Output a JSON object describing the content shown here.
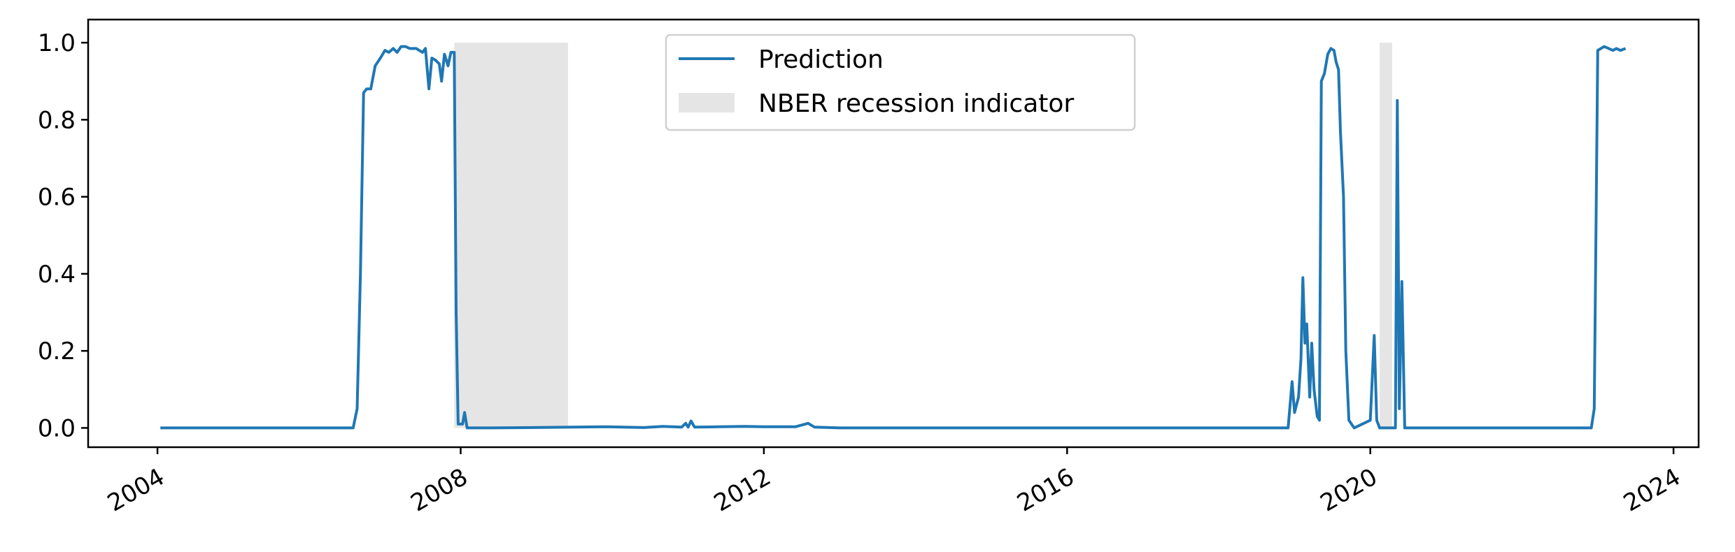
{
  "chart_data": {
    "type": "line",
    "xlim": [
      "2003-02-01",
      "2024-05-01"
    ],
    "ylim": [
      -0.05,
      1.06
    ],
    "xticks": [
      {
        "date": "2004-01-01",
        "label": "2004"
      },
      {
        "date": "2008-01-01",
        "label": "2008"
      },
      {
        "date": "2012-01-01",
        "label": "2012"
      },
      {
        "date": "2016-01-01",
        "label": "2016"
      },
      {
        "date": "2020-01-01",
        "label": "2020"
      },
      {
        "date": "2024-01-01",
        "label": "2024"
      }
    ],
    "yticks": [
      {
        "value": 0.0,
        "label": "0.0"
      },
      {
        "value": 0.2,
        "label": "0.2"
      },
      {
        "value": 0.4,
        "label": "0.4"
      },
      {
        "value": 0.6,
        "label": "0.6"
      },
      {
        "value": 0.8,
        "label": "0.8"
      },
      {
        "value": 1.0,
        "label": "1.0"
      }
    ],
    "legend_position": "top-center",
    "series": [
      {
        "name": "Prediction",
        "color": "#1f77b4",
        "points": [
          [
            "2004-01-15",
            0.0
          ],
          [
            "2006-08-01",
            0.0
          ],
          [
            "2006-08-20",
            0.05
          ],
          [
            "2006-09-05",
            0.4
          ],
          [
            "2006-09-20",
            0.87
          ],
          [
            "2006-10-05",
            0.88
          ],
          [
            "2006-10-25",
            0.88
          ],
          [
            "2006-11-15",
            0.94
          ],
          [
            "2006-12-10",
            0.96
          ],
          [
            "2007-01-01",
            0.98
          ],
          [
            "2007-01-20",
            0.975
          ],
          [
            "2007-02-10",
            0.985
          ],
          [
            "2007-03-01",
            0.975
          ],
          [
            "2007-03-20",
            0.99
          ],
          [
            "2007-04-10",
            0.99
          ],
          [
            "2007-05-01",
            0.985
          ],
          [
            "2007-06-01",
            0.985
          ],
          [
            "2007-07-01",
            0.975
          ],
          [
            "2007-07-15",
            0.985
          ],
          [
            "2007-08-01",
            0.88
          ],
          [
            "2007-08-15",
            0.96
          ],
          [
            "2007-09-01",
            0.955
          ],
          [
            "2007-09-20",
            0.945
          ],
          [
            "2007-10-01",
            0.9
          ],
          [
            "2007-10-15",
            0.97
          ],
          [
            "2007-11-01",
            0.94
          ],
          [
            "2007-11-15",
            0.975
          ],
          [
            "2007-12-01",
            0.975
          ],
          [
            "2007-12-10",
            0.3
          ],
          [
            "2007-12-20",
            0.01
          ],
          [
            "2008-01-10",
            0.01
          ],
          [
            "2008-01-20",
            0.04
          ],
          [
            "2008-02-01",
            0.0
          ],
          [
            "2008-06-01",
            0.0
          ],
          [
            "2009-12-01",
            0.003
          ],
          [
            "2010-06-01",
            0.001
          ],
          [
            "2010-09-01",
            0.004
          ],
          [
            "2010-12-01",
            0.002
          ],
          [
            "2010-12-20",
            0.012
          ],
          [
            "2011-01-01",
            0.002
          ],
          [
            "2011-01-15",
            0.018
          ],
          [
            "2011-02-01",
            0.002
          ],
          [
            "2011-06-01",
            0.003
          ],
          [
            "2011-10-01",
            0.004
          ],
          [
            "2012-01-01",
            0.003
          ],
          [
            "2012-06-01",
            0.003
          ],
          [
            "2012-08-01",
            0.012
          ],
          [
            "2012-09-01",
            0.002
          ],
          [
            "2013-01-01",
            0.0
          ],
          [
            "2018-12-01",
            0.0
          ],
          [
            "2018-12-20",
            0.12
          ],
          [
            "2019-01-01",
            0.04
          ],
          [
            "2019-01-20",
            0.08
          ],
          [
            "2019-02-01",
            0.18
          ],
          [
            "2019-02-10",
            0.39
          ],
          [
            "2019-02-20",
            0.22
          ],
          [
            "2019-03-01",
            0.27
          ],
          [
            "2019-03-15",
            0.08
          ],
          [
            "2019-03-25",
            0.22
          ],
          [
            "2019-04-05",
            0.1
          ],
          [
            "2019-04-20",
            0.03
          ],
          [
            "2019-05-01",
            0.02
          ],
          [
            "2019-05-10",
            0.9
          ],
          [
            "2019-05-25",
            0.92
          ],
          [
            "2019-06-10",
            0.97
          ],
          [
            "2019-06-25",
            0.985
          ],
          [
            "2019-07-10",
            0.98
          ],
          [
            "2019-07-20",
            0.95
          ],
          [
            "2019-08-01",
            0.93
          ],
          [
            "2019-08-10",
            0.77
          ],
          [
            "2019-08-25",
            0.6
          ],
          [
            "2019-09-05",
            0.2
          ],
          [
            "2019-09-20",
            0.02
          ],
          [
            "2019-10-15",
            0.0
          ],
          [
            "2020-01-01",
            0.02
          ],
          [
            "2020-01-20",
            0.24
          ],
          [
            "2020-02-01",
            0.02
          ],
          [
            "2020-02-15",
            0.0
          ],
          [
            "2020-05-01",
            0.0
          ],
          [
            "2020-05-10",
            0.85
          ],
          [
            "2020-05-20",
            0.05
          ],
          [
            "2020-06-01",
            0.38
          ],
          [
            "2020-06-15",
            0.0
          ],
          [
            "2022-12-01",
            0.0
          ],
          [
            "2022-12-15",
            0.05
          ],
          [
            "2023-01-01",
            0.98
          ],
          [
            "2023-02-01",
            0.99
          ],
          [
            "2023-03-15",
            0.98
          ],
          [
            "2023-04-01",
            0.985
          ],
          [
            "2023-04-20",
            0.98
          ],
          [
            "2023-05-15",
            0.985
          ]
        ]
      }
    ],
    "recessions": {
      "name": "NBER recession indicator",
      "color": "#e5e5e5",
      "periods": [
        {
          "start": "2007-12-01",
          "end": "2009-06-01"
        },
        {
          "start": "2020-02-15",
          "end": "2020-04-15"
        }
      ],
      "height": 1.0
    }
  }
}
